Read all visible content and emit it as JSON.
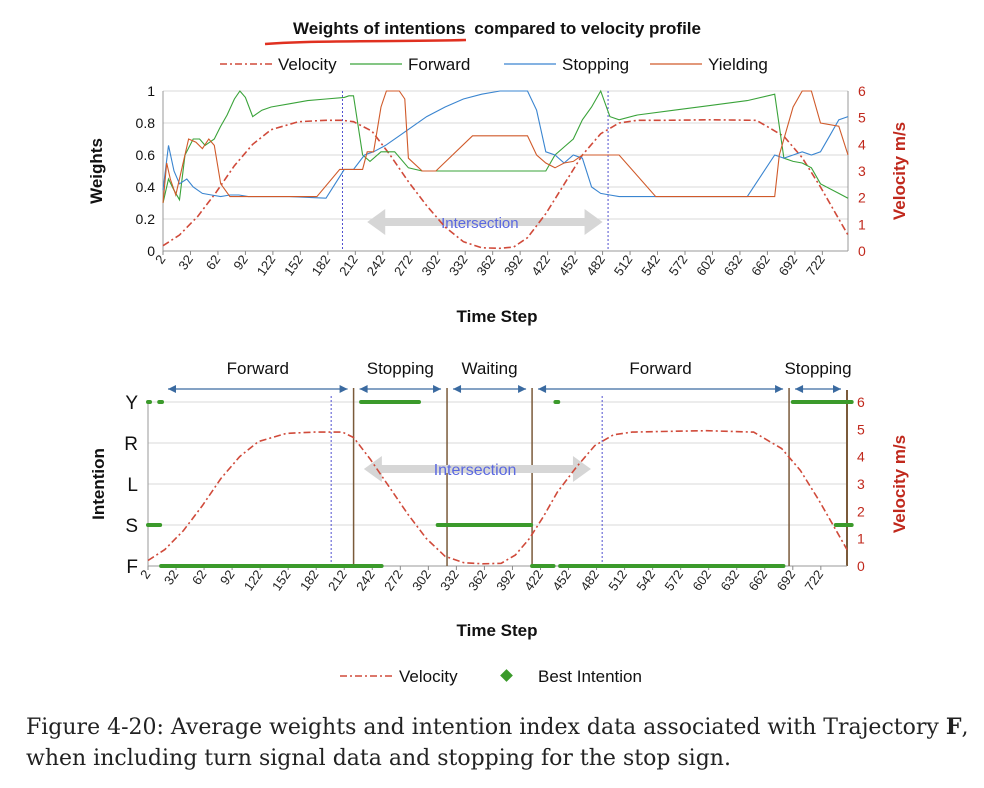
{
  "colors": {
    "velocity": "#d04a3a",
    "forward": "#3aa33a",
    "stopping": "#3a85d0",
    "yielding": "#d05a2a",
    "best_intention": "#3b9a2b",
    "velocity_axis": "#c0281c",
    "intersection_label": "#5a68e0",
    "divider": "#7a5a3a",
    "arrow": "#3a6aa0",
    "underline": "#e03020"
  },
  "chart_data": [
    {
      "type": "line",
      "title": "Weights of intentions compared to velocity profile",
      "title_underlined_part": "Weights of intentions",
      "title_rest": "compared to velocity profile",
      "xlabel": "Time Step",
      "ylabel": "Weights",
      "y2label": "Velocity m/s",
      "xlim": [
        2,
        750
      ],
      "ylim": [
        0,
        1
      ],
      "y2lim": [
        0,
        6
      ],
      "x_ticks": [
        "2",
        "32",
        "62",
        "92",
        "122",
        "152",
        "182",
        "212",
        "242",
        "272",
        "302",
        "332",
        "362",
        "392",
        "422",
        "452",
        "482",
        "512",
        "542",
        "572",
        "602",
        "632",
        "662",
        "692",
        "722"
      ],
      "y_ticks": [
        "0",
        "0.2",
        "0.4",
        "0.6",
        "0.8",
        "1"
      ],
      "y2_ticks": [
        "0",
        "1",
        "2",
        "3",
        "4",
        "5",
        "6"
      ],
      "legend": [
        "Velocity",
        "Forward",
        "Stopping",
        "Yielding"
      ],
      "legend_position": "top",
      "annotation": "Intersection",
      "intersection_bounds": [
        198,
        488
      ],
      "series": [
        {
          "name": "Velocity",
          "axis": "right",
          "x": [
            2,
            20,
            40,
            60,
            80,
            100,
            120,
            150,
            180,
            198,
            210,
            230,
            250,
            270,
            290,
            310,
            330,
            350,
            370,
            385,
            400,
            420,
            440,
            460,
            480,
            500,
            520,
            550,
            600,
            650,
            680,
            700,
            720,
            740,
            750
          ],
          "y": [
            0.2,
            0.6,
            1.3,
            2.2,
            3.2,
            4.0,
            4.55,
            4.85,
            4.9,
            4.9,
            4.85,
            4.5,
            3.6,
            2.6,
            1.7,
            0.9,
            0.35,
            0.12,
            0.1,
            0.15,
            0.5,
            1.4,
            2.5,
            3.6,
            4.4,
            4.8,
            4.9,
            4.9,
            4.92,
            4.9,
            4.3,
            3.5,
            2.4,
            1.2,
            0.6
          ]
        },
        {
          "name": "Forward",
          "axis": "left",
          "x": [
            2,
            8,
            14,
            20,
            26,
            35,
            42,
            48,
            58,
            65,
            72,
            80,
            86,
            92,
            100,
            110,
            120,
            140,
            160,
            180,
            200,
            205,
            210,
            220,
            228,
            240,
            255,
            270,
            285,
            300,
            320,
            340,
            360,
            380,
            395,
            420,
            430,
            440,
            450,
            460,
            470,
            480,
            490,
            500,
            520,
            560,
            600,
            640,
            670,
            680,
            690,
            700,
            710,
            720,
            740,
            750
          ],
          "y": [
            0.3,
            0.45,
            0.38,
            0.32,
            0.6,
            0.7,
            0.7,
            0.66,
            0.7,
            0.78,
            0.85,
            0.95,
            1.0,
            0.96,
            0.84,
            0.88,
            0.9,
            0.92,
            0.94,
            0.95,
            0.96,
            0.97,
            0.97,
            0.6,
            0.56,
            0.62,
            0.62,
            0.52,
            0.5,
            0.5,
            0.5,
            0.5,
            0.5,
            0.5,
            0.5,
            0.5,
            0.6,
            0.65,
            0.7,
            0.82,
            0.9,
            1.0,
            0.84,
            0.82,
            0.85,
            0.88,
            0.91,
            0.94,
            0.98,
            0.58,
            0.56,
            0.55,
            0.52,
            0.42,
            0.36,
            0.33
          ]
        },
        {
          "name": "Stopping",
          "axis": "left",
          "x": [
            2,
            8,
            14,
            20,
            28,
            35,
            45,
            55,
            65,
            75,
            85,
            95,
            110,
            140,
            180,
            200,
            210,
            222,
            232,
            245,
            260,
            275,
            290,
            310,
            330,
            350,
            370,
            390,
            400,
            410,
            420,
            430,
            440,
            450,
            460,
            470,
            480,
            490,
            500,
            520,
            560,
            600,
            640,
            670,
            680,
            690,
            700,
            710,
            720,
            730,
            740,
            750
          ],
          "y": [
            0.38,
            0.66,
            0.5,
            0.42,
            0.45,
            0.4,
            0.36,
            0.35,
            0.34,
            0.35,
            0.35,
            0.34,
            0.34,
            0.34,
            0.33,
            0.51,
            0.51,
            0.6,
            0.62,
            0.66,
            0.72,
            0.78,
            0.84,
            0.9,
            0.95,
            0.98,
            1.0,
            1.0,
            1.0,
            0.88,
            0.62,
            0.6,
            0.55,
            0.6,
            0.58,
            0.4,
            0.36,
            0.35,
            0.34,
            0.34,
            0.34,
            0.34,
            0.34,
            0.6,
            0.58,
            0.6,
            0.62,
            0.6,
            0.62,
            0.72,
            0.82,
            0.84
          ]
        },
        {
          "name": "Yielding",
          "axis": "left",
          "x": [
            2,
            6,
            10,
            16,
            24,
            30,
            38,
            45,
            52,
            58,
            65,
            75,
            82,
            86,
            92,
            100,
            110,
            140,
            170,
            195,
            200,
            210,
            220,
            225,
            232,
            240,
            246,
            252,
            260,
            266,
            270,
            285,
            300,
            340,
            380,
            400,
            410,
            420,
            430,
            440,
            450,
            460,
            470,
            480,
            500,
            540,
            600,
            640,
            670,
            675,
            690,
            700,
            710,
            720,
            740,
            750
          ],
          "y": [
            0.3,
            0.55,
            0.45,
            0.35,
            0.55,
            0.7,
            0.68,
            0.64,
            0.7,
            0.66,
            0.42,
            0.34,
            0.34,
            0.34,
            0.34,
            0.34,
            0.34,
            0.34,
            0.34,
            0.51,
            0.51,
            0.51,
            0.51,
            0.62,
            0.62,
            0.9,
            1.0,
            1.0,
            1.0,
            0.95,
            0.58,
            0.5,
            0.5,
            0.72,
            0.72,
            0.72,
            0.6,
            0.55,
            0.52,
            0.55,
            0.56,
            0.6,
            0.6,
            0.6,
            0.6,
            0.34,
            0.34,
            0.34,
            0.34,
            0.6,
            0.9,
            1.0,
            1.0,
            0.8,
            0.78,
            0.6
          ]
        }
      ]
    },
    {
      "type": "scatter",
      "xlabel": "Time Step",
      "ylabel": "Intention",
      "y2label": "Velocity m/s",
      "xlim": [
        2,
        750
      ],
      "y2lim": [
        0,
        6
      ],
      "x_ticks": [
        "2",
        "32",
        "62",
        "92",
        "122",
        "152",
        "182",
        "212",
        "242",
        "272",
        "302",
        "332",
        "362",
        "392",
        "422",
        "452",
        "482",
        "512",
        "542",
        "572",
        "602",
        "632",
        "662",
        "692",
        "722"
      ],
      "y_categories": [
        "F",
        "S",
        "L",
        "R",
        "Y"
      ],
      "y2_ticks": [
        "0",
        "1",
        "2",
        "3",
        "4",
        "5",
        "6"
      ],
      "legend": [
        "Velocity",
        "Best Intention"
      ],
      "legend_position": "bottom",
      "annotation": "Intersection",
      "intersection_bounds": [
        198,
        488
      ],
      "phase_dividers": [
        222,
        322,
        413,
        688
      ],
      "phases": [
        {
          "label": "Forward",
          "start": 2,
          "end": 222
        },
        {
          "label": "Stopping",
          "start": 222,
          "end": 322
        },
        {
          "label": "Waiting",
          "start": 322,
          "end": 413
        },
        {
          "label": "Forward",
          "start": 413,
          "end": 688
        },
        {
          "label": "Stopping",
          "start": 688,
          "end": 750
        }
      ],
      "best_intention_segments": [
        {
          "intention": "Y",
          "start": 2,
          "end": 3
        },
        {
          "intention": "Y",
          "start": 14,
          "end": 17
        },
        {
          "intention": "Y",
          "start": 230,
          "end": 292
        },
        {
          "intention": "Y",
          "start": 438,
          "end": 441
        },
        {
          "intention": "Y",
          "start": 692,
          "end": 755
        },
        {
          "intention": "S",
          "start": 2,
          "end": 15
        },
        {
          "intention": "S",
          "start": 312,
          "end": 412
        },
        {
          "intention": "S",
          "start": 738,
          "end": 755
        },
        {
          "intention": "F",
          "start": 16,
          "end": 252
        },
        {
          "intention": "F",
          "start": 413,
          "end": 436
        },
        {
          "intention": "F",
          "start": 443,
          "end": 682
        }
      ],
      "series": [
        {
          "name": "Velocity",
          "axis": "right",
          "x": [
            2,
            20,
            40,
            60,
            80,
            100,
            120,
            150,
            180,
            198,
            210,
            222,
            240,
            260,
            280,
            300,
            320,
            340,
            360,
            380,
            395,
            410,
            425,
            440,
            460,
            480,
            500,
            520,
            550,
            600,
            650,
            680,
            700,
            720,
            740,
            750
          ],
          "y": [
            0.2,
            0.6,
            1.3,
            2.2,
            3.2,
            4.0,
            4.55,
            4.85,
            4.9,
            4.9,
            4.9,
            4.7,
            3.9,
            2.9,
            1.9,
            1.0,
            0.35,
            0.12,
            0.08,
            0.1,
            0.4,
            1.0,
            1.8,
            2.7,
            3.6,
            4.4,
            4.8,
            4.9,
            4.92,
            4.95,
            4.9,
            4.3,
            3.5,
            2.4,
            1.2,
            0.6
          ]
        }
      ]
    }
  ],
  "caption": {
    "prefix": "Figure 4-20: Average weights and intention index data associated with Trajectory",
    "bold": "F",
    "suffix": ", when including turn signal data and stopping for the stop sign."
  }
}
